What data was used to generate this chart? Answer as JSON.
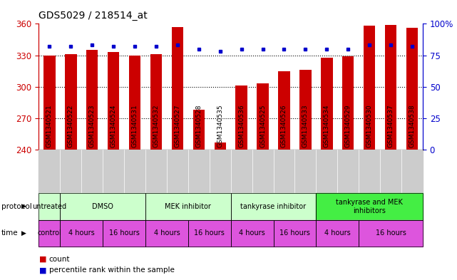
{
  "title": "GDS5029 / 218514_at",
  "samples": [
    "GSM1340521",
    "GSM1340522",
    "GSM1340523",
    "GSM1340524",
    "GSM1340531",
    "GSM1340532",
    "GSM1340527",
    "GSM1340528",
    "GSM1340535",
    "GSM1340536",
    "GSM1340525",
    "GSM1340526",
    "GSM1340533",
    "GSM1340534",
    "GSM1340529",
    "GSM1340530",
    "GSM1340537",
    "GSM1340538"
  ],
  "bar_values": [
    330,
    331,
    335,
    333,
    330,
    331,
    357,
    278,
    247,
    301,
    303,
    315,
    316,
    328,
    329,
    358,
    359,
    356
  ],
  "percentile_values": [
    82,
    82,
    83,
    82,
    82,
    82,
    83,
    80,
    78,
    80,
    80,
    80,
    80,
    80,
    80,
    83,
    83,
    82
  ],
  "bar_color": "#cc0000",
  "dot_color": "#0000cc",
  "ymin": 240,
  "ymax": 360,
  "yticks": [
    240,
    270,
    300,
    330,
    360
  ],
  "y2min": 0,
  "y2max": 100,
  "y2ticks": [
    0,
    25,
    50,
    75,
    100
  ],
  "y2ticklabels": [
    "0",
    "25",
    "50",
    "75",
    "100%"
  ],
  "protocol_groups": [
    {
      "label": "untreated",
      "start": 0,
      "end": 1,
      "color": "#ccffcc"
    },
    {
      "label": "DMSO",
      "start": 1,
      "end": 5,
      "color": "#ccffcc"
    },
    {
      "label": "MEK inhibitor",
      "start": 5,
      "end": 9,
      "color": "#ccffcc"
    },
    {
      "label": "tankyrase inhibitor",
      "start": 9,
      "end": 13,
      "color": "#ccffcc"
    },
    {
      "label": "tankyrase and MEK\ninhibitors",
      "start": 13,
      "end": 18,
      "color": "#44ee44"
    }
  ],
  "time_groups": [
    {
      "label": "control",
      "start": 0,
      "end": 1,
      "color": "#dd55dd"
    },
    {
      "label": "4 hours",
      "start": 1,
      "end": 3,
      "color": "#dd55dd"
    },
    {
      "label": "16 hours",
      "start": 3,
      "end": 5,
      "color": "#dd55dd"
    },
    {
      "label": "4 hours",
      "start": 5,
      "end": 7,
      "color": "#dd55dd"
    },
    {
      "label": "16 hours",
      "start": 7,
      "end": 9,
      "color": "#dd55dd"
    },
    {
      "label": "4 hours",
      "start": 9,
      "end": 11,
      "color": "#dd55dd"
    },
    {
      "label": "16 hours",
      "start": 11,
      "end": 13,
      "color": "#dd55dd"
    },
    {
      "label": "4 hours",
      "start": 13,
      "end": 15,
      "color": "#dd55dd"
    },
    {
      "label": "16 hours",
      "start": 15,
      "end": 18,
      "color": "#dd55dd"
    }
  ],
  "protocol_label": "protocol",
  "time_label": "time",
  "legend_count_color": "#cc0000",
  "legend_dot_color": "#0000cc",
  "axis_left_color": "#cc0000",
  "axis_right_color": "#0000cc",
  "xtick_bg_color": "#cccccc",
  "xtick_border_color": "#999999"
}
